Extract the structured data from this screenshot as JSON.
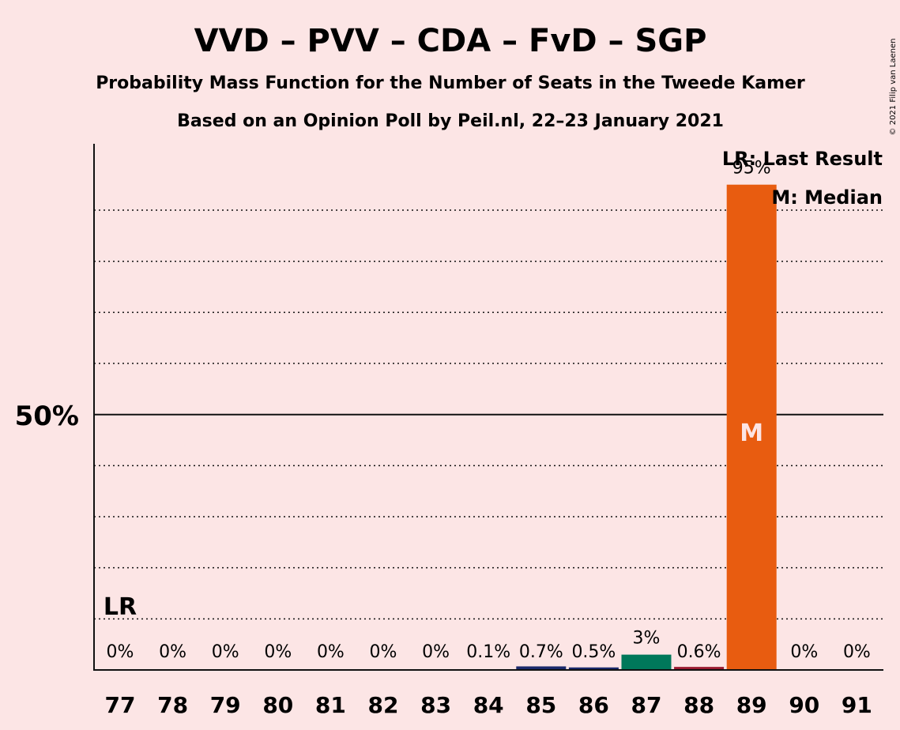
{
  "chart_data": {
    "type": "bar",
    "title": "VVD – PVV – CDA – FvD – SGP",
    "subtitle": "Probability Mass Function for the Number of Seats in the Tweede Kamer",
    "subtitle2": "Based on an Opinion Poll by Peil.nl, 22–23 January 2021",
    "copyright": "© 2021 Filip van Laenen",
    "categories": [
      "77",
      "78",
      "79",
      "80",
      "81",
      "82",
      "83",
      "84",
      "85",
      "86",
      "87",
      "88",
      "89",
      "90",
      "91"
    ],
    "values": [
      0,
      0,
      0,
      0,
      0,
      0,
      0,
      0.1,
      0.7,
      0.5,
      3,
      0.6,
      95,
      0,
      0
    ],
    "value_labels": [
      "0%",
      "0%",
      "0%",
      "0%",
      "0%",
      "0%",
      "0%",
      "0.1%",
      "0.7%",
      "0.5%",
      "3%",
      "0.6%",
      "95%",
      "0%",
      "0%"
    ],
    "bar_colors": [
      "#1B2A6B",
      "#1B2A6B",
      "#1B2A6B",
      "#1B2A6B",
      "#1B2A6B",
      "#1B2A6B",
      "#1B2A6B",
      "#1B2A6B",
      "#1B2A6B",
      "#1B2A6B",
      "#00785A",
      "#9B1B30",
      "#E85C10",
      "#1B2A6B",
      "#1B2A6B"
    ],
    "ylim": [
      0,
      103
    ],
    "y_tick_label": "50%",
    "y_tick_value": 50,
    "dotted_gridlines": [
      10,
      20,
      30,
      40,
      60,
      70,
      80,
      90
    ],
    "last_result_seat": "77",
    "last_result_marker": "LR",
    "median_seat": "89",
    "median_marker": "M",
    "legend": [
      "LR: Last Result",
      "M: Median"
    ],
    "colors": {
      "background": "#FCE5E5",
      "text": "#111111"
    }
  }
}
